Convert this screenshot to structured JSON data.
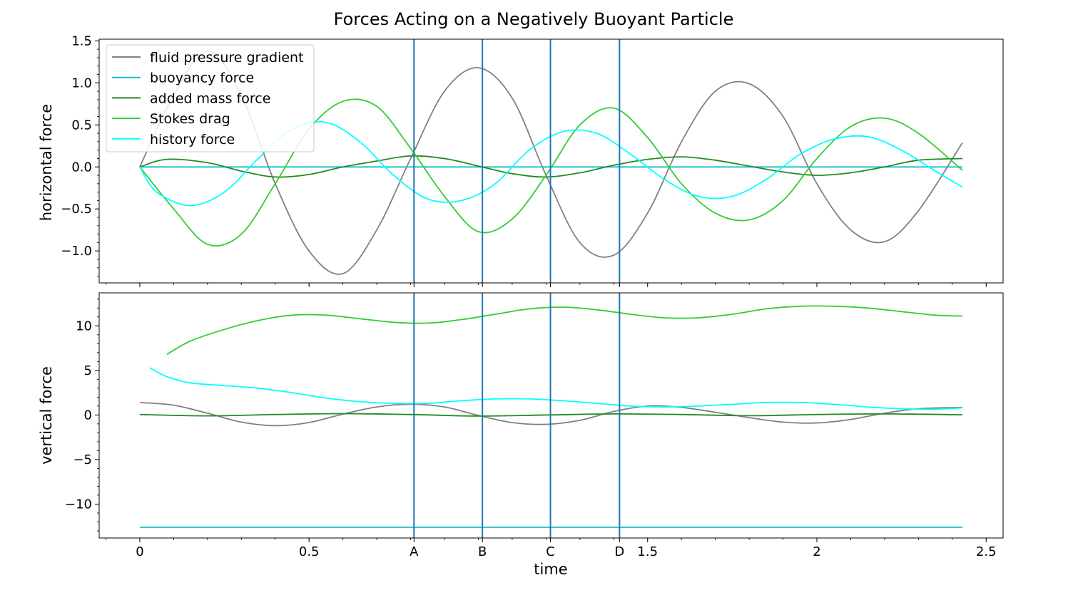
{
  "chart_data": {
    "type": "line",
    "title": "Forces Acting on a Negatively Buoyant Particle",
    "xlabel": "time",
    "xlim": [
      -0.12,
      2.55
    ],
    "xticks": [
      {
        "value": 0,
        "label": "0"
      },
      {
        "value": 0.5,
        "label": "0.5"
      },
      {
        "value": 0.81,
        "label": "A"
      },
      {
        "value": 1.012,
        "label": "B"
      },
      {
        "value": 1.213,
        "label": "C"
      },
      {
        "value": 1.417,
        "label": "D"
      },
      {
        "value": 1.5,
        "label": "1.5"
      },
      {
        "value": 2,
        "label": "2"
      },
      {
        "value": 2.5,
        "label": "2.5"
      }
    ],
    "vlines": [
      {
        "label": "A",
        "x": 0.81
      },
      {
        "label": "B",
        "x": 1.012
      },
      {
        "label": "C",
        "x": 1.213
      },
      {
        "label": "D",
        "x": 1.417
      }
    ],
    "colors": {
      "fluid pressure gradient": "#808080",
      "buoyancy force": "#17becf",
      "added mass force": "#228b22",
      "Stokes drag": "#32cd32",
      "history force": "#00ffff",
      "vlines": "#1f77b4"
    },
    "legend": {
      "placement": "upper left of top panel",
      "entries": [
        "fluid pressure gradient",
        "buoyancy force",
        "added mass force",
        "Stokes drag",
        "history force"
      ]
    },
    "panels": [
      {
        "name": "horizontal",
        "ylabel": "horizontal force",
        "ylim": [
          -1.38,
          1.52
        ],
        "yticks": [
          {
            "value": 1.5,
            "label": "1.5"
          },
          {
            "value": 1.0,
            "label": "1.0"
          },
          {
            "value": 0.5,
            "label": "0.5"
          },
          {
            "value": 0.0,
            "label": "0.0"
          },
          {
            "value": -0.5,
            "label": "−0.5"
          },
          {
            "value": -1.0,
            "label": "−1.0"
          }
        ],
        "series": [
          {
            "name": "fluid pressure gradient",
            "x": [
              0,
              0.1,
              0.2,
              0.3,
              0.4,
              0.5,
              0.6,
              0.7,
              0.8,
              0.9,
              1.0,
              1.1,
              1.2,
              1.3,
              1.4,
              1.5,
              1.6,
              1.7,
              1.8,
              1.9,
              2.0,
              2.1,
              2.2,
              2.3,
              2.43
            ],
            "values": [
              0.0,
              0.85,
              1.38,
              0.85,
              -0.2,
              -1.0,
              -1.27,
              -0.75,
              0.1,
              0.9,
              1.18,
              0.82,
              -0.1,
              -0.9,
              -1.05,
              -0.55,
              0.3,
              0.9,
              0.99,
              0.6,
              -0.2,
              -0.75,
              -0.89,
              -0.52,
              0.29
            ]
          },
          {
            "name": "buoyancy force",
            "x": [
              0,
              2.43
            ],
            "values": [
              0.0,
              0.0
            ]
          },
          {
            "name": "added mass force",
            "x": [
              0,
              0.08,
              0.2,
              0.3,
              0.4,
              0.5,
              0.6,
              0.7,
              0.8,
              0.9,
              1.0,
              1.1,
              1.2,
              1.3,
              1.4,
              1.5,
              1.6,
              1.7,
              1.8,
              1.9,
              2.0,
              2.1,
              2.2,
              2.3,
              2.43
            ],
            "values": [
              0.0,
              0.09,
              0.05,
              -0.05,
              -0.12,
              -0.09,
              0.0,
              0.07,
              0.13,
              0.1,
              0.01,
              -0.08,
              -0.12,
              -0.07,
              0.02,
              0.09,
              0.12,
              0.08,
              0.01,
              -0.06,
              -0.1,
              -0.07,
              0.0,
              0.08,
              0.1
            ]
          },
          {
            "name": "Stokes drag",
            "x": [
              0,
              0.1,
              0.2,
              0.3,
              0.4,
              0.5,
              0.6,
              0.7,
              0.8,
              0.9,
              1.0,
              1.1,
              1.2,
              1.3,
              1.4,
              1.5,
              1.6,
              1.7,
              1.8,
              1.9,
              2.0,
              2.1,
              2.2,
              2.3,
              2.43
            ],
            "values": [
              0.0,
              -0.5,
              -0.92,
              -0.8,
              -0.2,
              0.45,
              0.78,
              0.72,
              0.22,
              -0.35,
              -0.77,
              -0.62,
              -0.1,
              0.5,
              0.7,
              0.35,
              -0.2,
              -0.55,
              -0.63,
              -0.4,
              0.1,
              0.48,
              0.58,
              0.4,
              -0.04
            ]
          },
          {
            "name": "history force",
            "x": [
              0,
              0.05,
              0.15,
              0.25,
              0.35,
              0.45,
              0.55,
              0.65,
              0.75,
              0.85,
              0.95,
              1.05,
              1.15,
              1.25,
              1.35,
              1.45,
              1.55,
              1.65,
              1.75,
              1.85,
              1.95,
              2.05,
              2.15,
              2.25,
              2.35,
              2.43
            ],
            "values": [
              0.0,
              -0.3,
              -0.46,
              -0.3,
              0.1,
              0.45,
              0.53,
              0.3,
              -0.1,
              -0.38,
              -0.4,
              -0.2,
              0.2,
              0.42,
              0.4,
              0.15,
              -0.15,
              -0.35,
              -0.35,
              -0.15,
              0.15,
              0.33,
              0.36,
              0.2,
              -0.05,
              -0.24
            ]
          }
        ]
      },
      {
        "name": "vertical",
        "ylabel": "vertical force",
        "ylim": [
          -13.8,
          13.7
        ],
        "yticks": [
          {
            "value": 10,
            "label": "10"
          },
          {
            "value": 5,
            "label": "5"
          },
          {
            "value": 0,
            "label": "0"
          },
          {
            "value": -5,
            "label": "−5"
          },
          {
            "value": -10,
            "label": "−10"
          }
        ],
        "series": [
          {
            "name": "fluid pressure gradient",
            "x": [
              0,
              0.1,
              0.2,
              0.3,
              0.4,
              0.5,
              0.6,
              0.7,
              0.8,
              0.9,
              1.0,
              1.1,
              1.2,
              1.3,
              1.4,
              1.5,
              1.6,
              1.7,
              1.8,
              1.9,
              2.0,
              2.1,
              2.2,
              2.3,
              2.43
            ],
            "values": [
              1.4,
              1.1,
              0.2,
              -0.8,
              -1.2,
              -0.85,
              0.1,
              0.9,
              1.2,
              0.9,
              -0.05,
              -0.85,
              -1.05,
              -0.6,
              0.4,
              1.0,
              0.85,
              0.3,
              -0.3,
              -0.8,
              -0.9,
              -0.5,
              0.2,
              0.7,
              0.85
            ]
          },
          {
            "name": "buoyancy force",
            "x": [
              0,
              2.43
            ],
            "values": [
              -12.6,
              -12.6
            ]
          },
          {
            "name": "added mass force",
            "x": [
              0,
              0.2,
              0.4,
              0.6,
              0.8,
              1.0,
              1.2,
              1.4,
              1.6,
              1.8,
              2.0,
              2.2,
              2.43
            ],
            "values": [
              0.05,
              -0.1,
              0.05,
              0.15,
              0.05,
              -0.12,
              0.0,
              0.12,
              0.05,
              -0.08,
              0.05,
              0.12,
              0.02
            ]
          },
          {
            "name": "Stokes drag",
            "x": [
              0.08,
              0.15,
              0.25,
              0.35,
              0.45,
              0.55,
              0.65,
              0.75,
              0.85,
              0.95,
              1.05,
              1.15,
              1.25,
              1.35,
              1.45,
              1.55,
              1.65,
              1.75,
              1.85,
              1.95,
              2.05,
              2.15,
              2.25,
              2.35,
              2.43
            ],
            "values": [
              6.8,
              8.3,
              9.6,
              10.6,
              11.2,
              11.2,
              10.8,
              10.4,
              10.3,
              10.7,
              11.3,
              11.9,
              12.1,
              11.8,
              11.3,
              10.9,
              10.9,
              11.3,
              11.9,
              12.2,
              12.2,
              12.0,
              11.6,
              11.2,
              11.1
            ]
          },
          {
            "name": "history force",
            "x": [
              0.03,
              0.08,
              0.15,
              0.25,
              0.35,
              0.45,
              0.55,
              0.65,
              0.75,
              0.85,
              0.95,
              1.05,
              1.15,
              1.25,
              1.35,
              1.45,
              1.55,
              1.65,
              1.75,
              1.85,
              1.95,
              2.05,
              2.15,
              2.25,
              2.35,
              2.43
            ],
            "values": [
              5.3,
              4.3,
              3.6,
              3.3,
              3.0,
              2.5,
              1.9,
              1.5,
              1.3,
              1.3,
              1.6,
              1.8,
              1.8,
              1.6,
              1.3,
              1.0,
              0.9,
              1.0,
              1.2,
              1.4,
              1.4,
              1.2,
              0.9,
              0.7,
              0.65,
              0.8
            ]
          }
        ]
      }
    ]
  }
}
